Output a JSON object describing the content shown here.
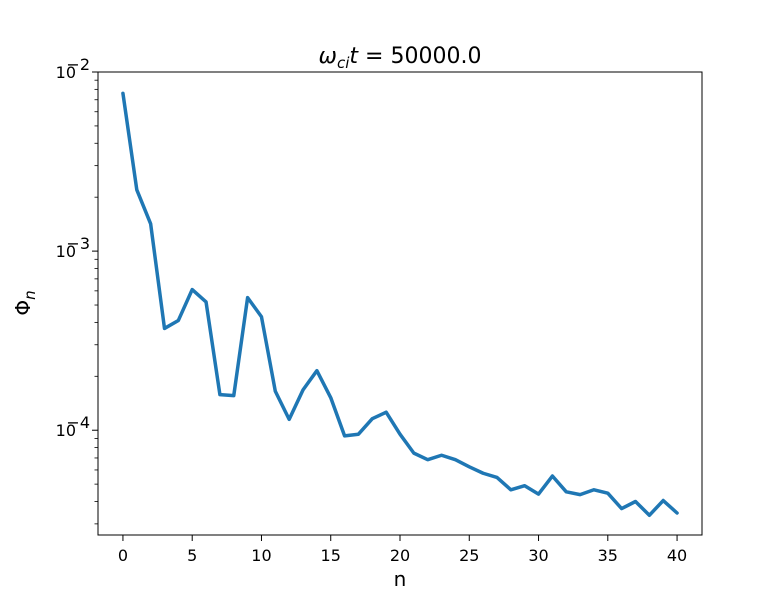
{
  "chart_data": {
    "type": "line",
    "title": {
      "var": "ω",
      "sub": "ci",
      "var2": "t",
      "rest": " = 50000.0"
    },
    "xlabel": "n",
    "ylabel": {
      "base": "Φ",
      "sub": "n"
    },
    "yscale": "log",
    "xlim": [
      -1.8,
      41.8
    ],
    "ylim": [
      2.6e-05,
      0.01
    ],
    "x_ticks": [
      0,
      5,
      10,
      15,
      20,
      25,
      30,
      35,
      40
    ],
    "x_tick_labels": [
      "0",
      "5",
      "10",
      "15",
      "20",
      "25",
      "30",
      "35",
      "40"
    ],
    "y_major_ticks": [
      {
        "value": 0.01,
        "base": "10",
        "exp": "−2"
      },
      {
        "value": 0.001,
        "base": "10",
        "exp": "−3"
      },
      {
        "value": 0.0001,
        "base": "10",
        "exp": "−4"
      }
    ],
    "grid": false,
    "series": [
      {
        "color": "#1f77b4",
        "x": [
          0,
          1,
          2,
          3,
          4,
          5,
          6,
          7,
          8,
          9,
          10,
          11,
          12,
          13,
          14,
          15,
          16,
          17,
          18,
          19,
          20,
          21,
          22,
          23,
          24,
          25,
          26,
          27,
          28,
          29,
          30,
          31,
          32,
          33,
          34,
          35,
          36,
          37,
          38,
          39,
          40
        ],
        "y": [
          0.0076,
          0.0022,
          0.00142,
          0.00037,
          0.00041,
          0.00061,
          0.00052,
          0.000158,
          0.000156,
          0.00055,
          0.00043,
          0.000165,
          0.000115,
          0.000168,
          0.000215,
          0.000152,
          9.3e-05,
          9.5e-05,
          0.000116,
          0.000126,
          9.5e-05,
          7.45e-05,
          6.85e-05,
          7.25e-05,
          6.85e-05,
          6.25e-05,
          5.75e-05,
          5.45e-05,
          4.65e-05,
          4.9e-05,
          4.4e-05,
          5.55e-05,
          4.53e-05,
          4.37e-05,
          4.65e-05,
          4.45e-05,
          3.65e-05,
          4e-05,
          3.35e-05,
          4.05e-05,
          3.45e-05
        ]
      }
    ]
  }
}
